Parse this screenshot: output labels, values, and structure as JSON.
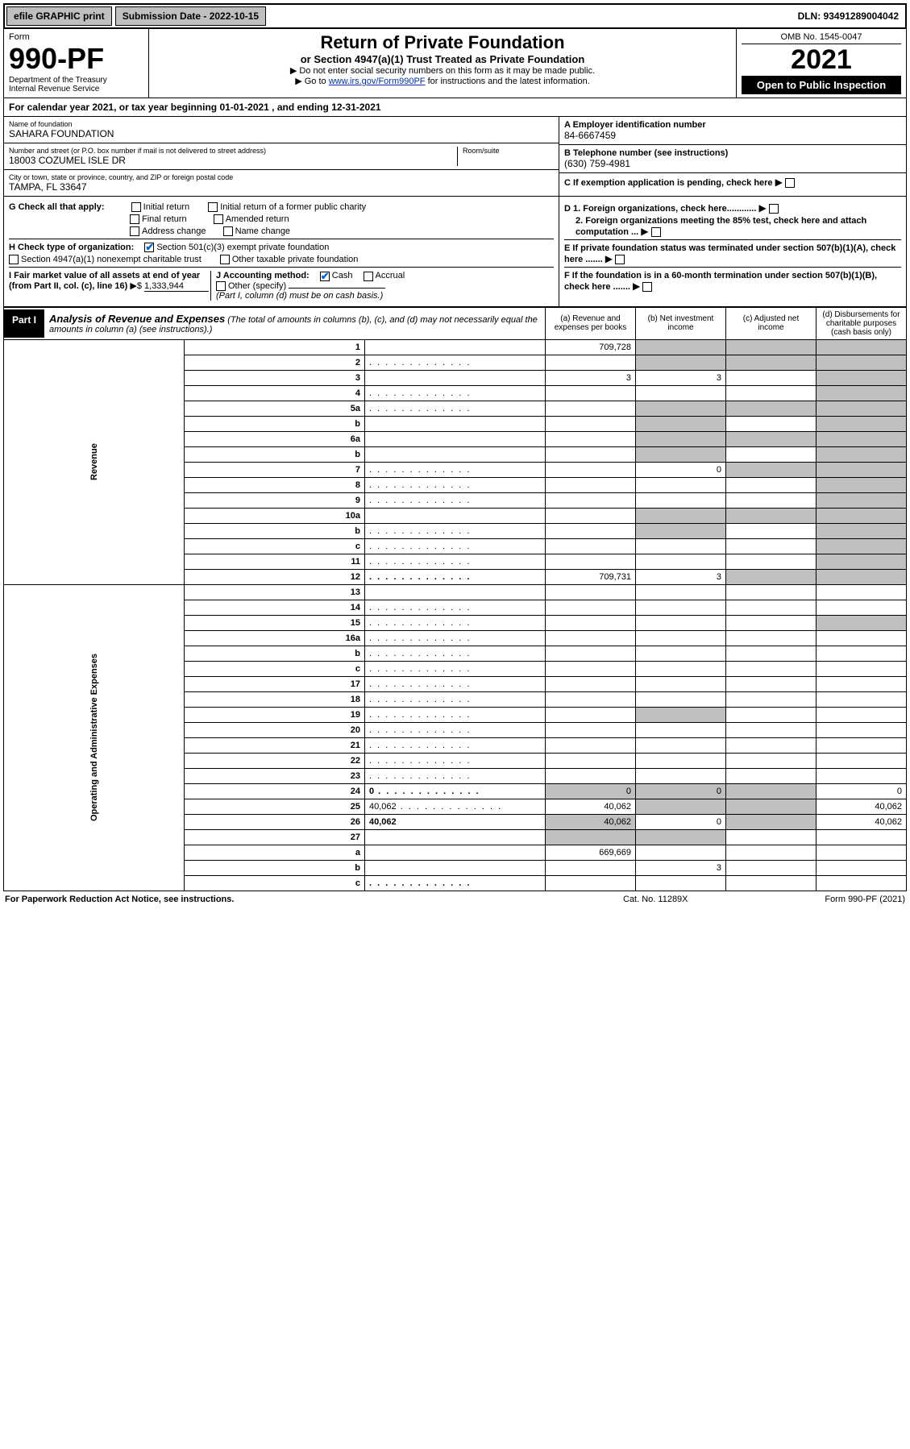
{
  "topbar": {
    "efile": "efile GRAPHIC print",
    "submission_label": "Submission Date - 2022-10-15",
    "dln": "DLN: 93491289004042"
  },
  "header": {
    "form_label": "Form",
    "form_no": "990-PF",
    "dept1": "Department of the Treasury",
    "dept2": "Internal Revenue Service",
    "title": "Return of Private Foundation",
    "subtitle": "or Section 4947(a)(1) Trust Treated as Private Foundation",
    "instr1": "▶ Do not enter social security numbers on this form as it may be made public.",
    "instr2_pre": "▶ Go to ",
    "instr2_link": "www.irs.gov/Form990PF",
    "instr2_post": " for instructions and the latest information.",
    "omb": "OMB No. 1545-0047",
    "year": "2021",
    "open": "Open to Public Inspection"
  },
  "calendar": {
    "pre": "For calendar year 2021, or tax year beginning ",
    "begin": "01-01-2021",
    "mid": " , and ending ",
    "end": "12-31-2021"
  },
  "entity": {
    "name_lbl": "Name of foundation",
    "name": "SAHARA FOUNDATION",
    "addr_lbl": "Number and street (or P.O. box number if mail is not delivered to street address)",
    "addr": "18003 COZUMEL ISLE DR",
    "room_lbl": "Room/suite",
    "city_lbl": "City or town, state or province, country, and ZIP or foreign postal code",
    "city": "TAMPA, FL  33647",
    "ein_lbl": "A Employer identification number",
    "ein": "84-6667459",
    "tel_lbl": "B Telephone number (see instructions)",
    "tel": "(630) 759-4981",
    "c_lbl": "C If exemption application is pending, check here"
  },
  "g": {
    "label": "G Check all that apply:",
    "opts": [
      "Initial return",
      "Initial return of a former public charity",
      "Final return",
      "Amended return",
      "Address change",
      "Name change"
    ]
  },
  "h": {
    "label": "H Check type of organization:",
    "opt1": "Section 501(c)(3) exempt private foundation",
    "opt2": "Section 4947(a)(1) nonexempt charitable trust",
    "opt3": "Other taxable private foundation"
  },
  "i": {
    "label": "I Fair market value of all assets at end of year (from Part II, col. (c), line 16)",
    "arrow": "▶$",
    "value": "1,333,944"
  },
  "j": {
    "label": "J Accounting method:",
    "cash": "Cash",
    "accrual": "Accrual",
    "other": "Other (specify)",
    "note": "(Part I, column (d) must be on cash basis.)"
  },
  "d": {
    "d1": "D 1. Foreign organizations, check here............",
    "d2": "2. Foreign organizations meeting the 85% test, check here and attach computation ..."
  },
  "e": {
    "label": "E  If private foundation status was terminated under section 507(b)(1)(A), check here ......."
  },
  "f": {
    "label": "F  If the foundation is in a 60-month termination under section 507(b)(1)(B), check here ......."
  },
  "part1": {
    "tag": "Part I",
    "title": "Analysis of Revenue and Expenses",
    "note": "(The total of amounts in columns (b), (c), and (d) may not necessarily equal the amounts in column (a) (see instructions).)",
    "cols": {
      "a": "(a)  Revenue and expenses per books",
      "b": "(b)  Net investment income",
      "c": "(c)  Adjusted net income",
      "d": "(d)  Disbursements for charitable purposes (cash basis only)"
    },
    "side_rev": "Revenue",
    "side_exp": "Operating and Administrative Expenses",
    "rows": [
      {
        "n": "1",
        "d": "",
        "a": "709,728",
        "b": "",
        "c": ""
      },
      {
        "n": "2",
        "d": "",
        "dots": true,
        "a": "",
        "b": "",
        "c": ""
      },
      {
        "n": "3",
        "d": "",
        "a": "3",
        "b": "3",
        "c": ""
      },
      {
        "n": "4",
        "d": "",
        "dots": true,
        "a": "",
        "b": "",
        "c": ""
      },
      {
        "n": "5a",
        "d": "",
        "dots": true,
        "a": "",
        "b": "",
        "c": ""
      },
      {
        "n": "b",
        "d": "",
        "a": "",
        "b": "",
        "c": ""
      },
      {
        "n": "6a",
        "d": "",
        "a": "",
        "b": "",
        "c": ""
      },
      {
        "n": "b",
        "d": "",
        "a": "",
        "b": "",
        "c": ""
      },
      {
        "n": "7",
        "d": "",
        "dots": true,
        "a": "",
        "b": "0",
        "c": ""
      },
      {
        "n": "8",
        "d": "",
        "dots": true,
        "a": "",
        "b": "",
        "c": ""
      },
      {
        "n": "9",
        "d": "",
        "dots": true,
        "a": "",
        "b": "",
        "c": ""
      },
      {
        "n": "10a",
        "d": "",
        "a": "",
        "b": "",
        "c": ""
      },
      {
        "n": "b",
        "d": "",
        "dots": true,
        "a": "",
        "b": "",
        "c": ""
      },
      {
        "n": "c",
        "d": "",
        "dots": true,
        "a": "",
        "b": "",
        "c": ""
      },
      {
        "n": "11",
        "d": "",
        "dots": true,
        "a": "",
        "b": "",
        "c": ""
      },
      {
        "n": "12",
        "d": "",
        "dots": true,
        "bold": true,
        "a": "709,731",
        "b": "3",
        "c": ""
      },
      {
        "n": "13",
        "d": "",
        "a": "",
        "b": "",
        "c": ""
      },
      {
        "n": "14",
        "d": "",
        "dots": true,
        "a": "",
        "b": "",
        "c": ""
      },
      {
        "n": "15",
        "d": "",
        "dots": true,
        "a": "",
        "b": "",
        "c": ""
      },
      {
        "n": "16a",
        "d": "",
        "dots": true,
        "a": "",
        "b": "",
        "c": ""
      },
      {
        "n": "b",
        "d": "",
        "dots": true,
        "a": "",
        "b": "",
        "c": ""
      },
      {
        "n": "c",
        "d": "",
        "dots": true,
        "a": "",
        "b": "",
        "c": ""
      },
      {
        "n": "17",
        "d": "",
        "dots": true,
        "a": "",
        "b": "",
        "c": ""
      },
      {
        "n": "18",
        "d": "",
        "dots": true,
        "a": "",
        "b": "",
        "c": ""
      },
      {
        "n": "19",
        "d": "",
        "dots": true,
        "a": "",
        "b": "",
        "c": ""
      },
      {
        "n": "20",
        "d": "",
        "dots": true,
        "a": "",
        "b": "",
        "c": ""
      },
      {
        "n": "21",
        "d": "",
        "dots": true,
        "a": "",
        "b": "",
        "c": ""
      },
      {
        "n": "22",
        "d": "",
        "dots": true,
        "a": "",
        "b": "",
        "c": ""
      },
      {
        "n": "23",
        "d": "",
        "dots": true,
        "a": "",
        "b": "",
        "c": ""
      },
      {
        "n": "24",
        "d": "0",
        "dots": true,
        "bold": true,
        "a": "0",
        "b": "0",
        "c": ""
      },
      {
        "n": "25",
        "d": "40,062",
        "dots": true,
        "a": "40,062",
        "b": "",
        "c": ""
      },
      {
        "n": "26",
        "d": "40,062",
        "bold": true,
        "a": "40,062",
        "b": "0",
        "c": ""
      },
      {
        "n": "27",
        "d": "",
        "a": "",
        "b": "",
        "c": ""
      },
      {
        "n": "a",
        "d": "",
        "bold": true,
        "a": "669,669",
        "b": "",
        "c": ""
      },
      {
        "n": "b",
        "d": "",
        "bold": true,
        "a": "",
        "b": "3",
        "c": ""
      },
      {
        "n": "c",
        "d": "",
        "bold": true,
        "dots": true,
        "a": "",
        "b": "",
        "c": ""
      }
    ],
    "shading": {
      "col_b_shade_rows": [
        "1",
        "2",
        "5a",
        "b5",
        "6a",
        "b6",
        "10a",
        "b10",
        "25",
        "27",
        "a27",
        "c27"
      ],
      "col_c_shade_rows": [
        "1",
        "2",
        "5a",
        "6a",
        "7",
        "10a",
        "12",
        "27",
        "a27",
        "b27"
      ],
      "col_d_shade_all_revenue": true
    }
  },
  "footer": {
    "left": "For Paperwork Reduction Act Notice, see instructions.",
    "mid": "Cat. No. 11289X",
    "right": "Form 990-PF (2021)"
  },
  "colors": {
    "link": "#003399",
    "check": "#0066cc",
    "shade": "#bfbfbf",
    "black": "#000000",
    "white": "#ffffff"
  }
}
